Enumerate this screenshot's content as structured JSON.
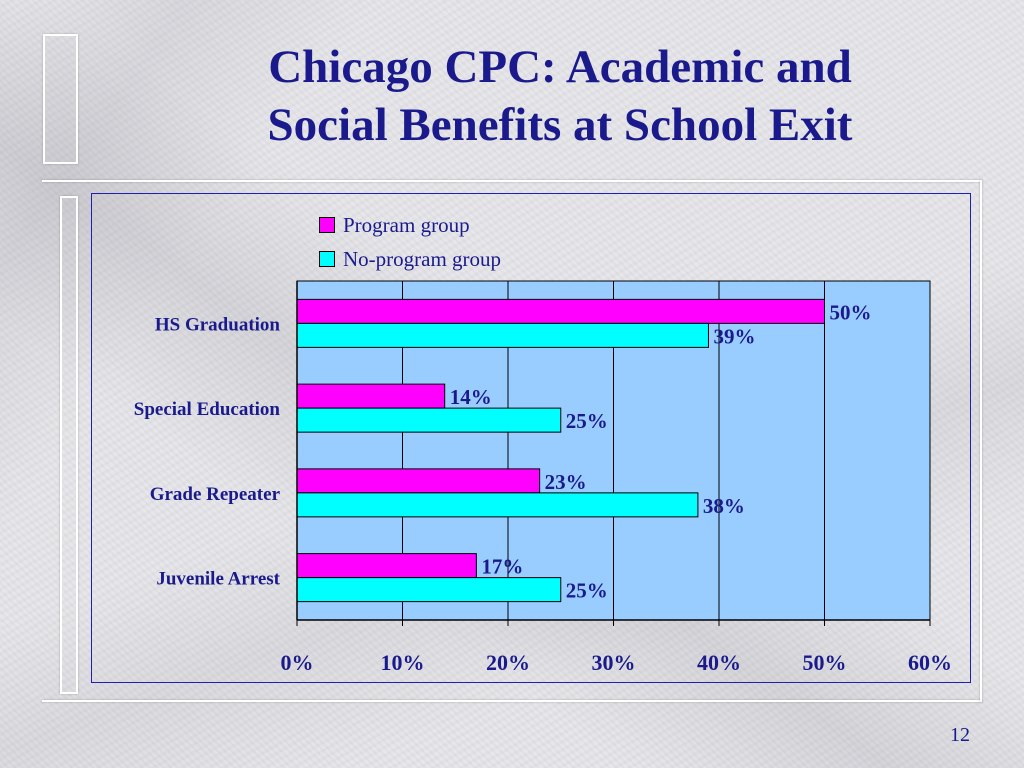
{
  "title": [
    "Chicago CPC: Academic and",
    "Social Benefits at School Exit"
  ],
  "page_number": "12",
  "colors": {
    "title": "#1a1a8c",
    "program": "#ff00ff",
    "no_program": "#00ffff",
    "plot_bg": "#99ccff",
    "axis_text": "#1a1a8c",
    "border": "#1f1fb0"
  },
  "chart_data": {
    "type": "bar",
    "orientation": "horizontal",
    "categories": [
      "HS Graduation",
      "Special Education",
      "Grade Repeater",
      "Juvenile Arrest"
    ],
    "series": [
      {
        "name": "Program group",
        "values": [
          50,
          14,
          23,
          17
        ],
        "labels": [
          "50%",
          "14%",
          "23%",
          "17%"
        ]
      },
      {
        "name": "No-program group",
        "values": [
          39,
          25,
          38,
          25
        ],
        "labels": [
          "39%",
          "25%",
          "38%",
          "25%"
        ]
      }
    ],
    "xlim": [
      0,
      60
    ],
    "xticks": [
      0,
      10,
      20,
      30,
      40,
      50,
      60
    ],
    "xtick_labels": [
      "0%",
      "10%",
      "20%",
      "30%",
      "40%",
      "50%",
      "60%"
    ],
    "grid": true,
    "legend_position": "top"
  }
}
